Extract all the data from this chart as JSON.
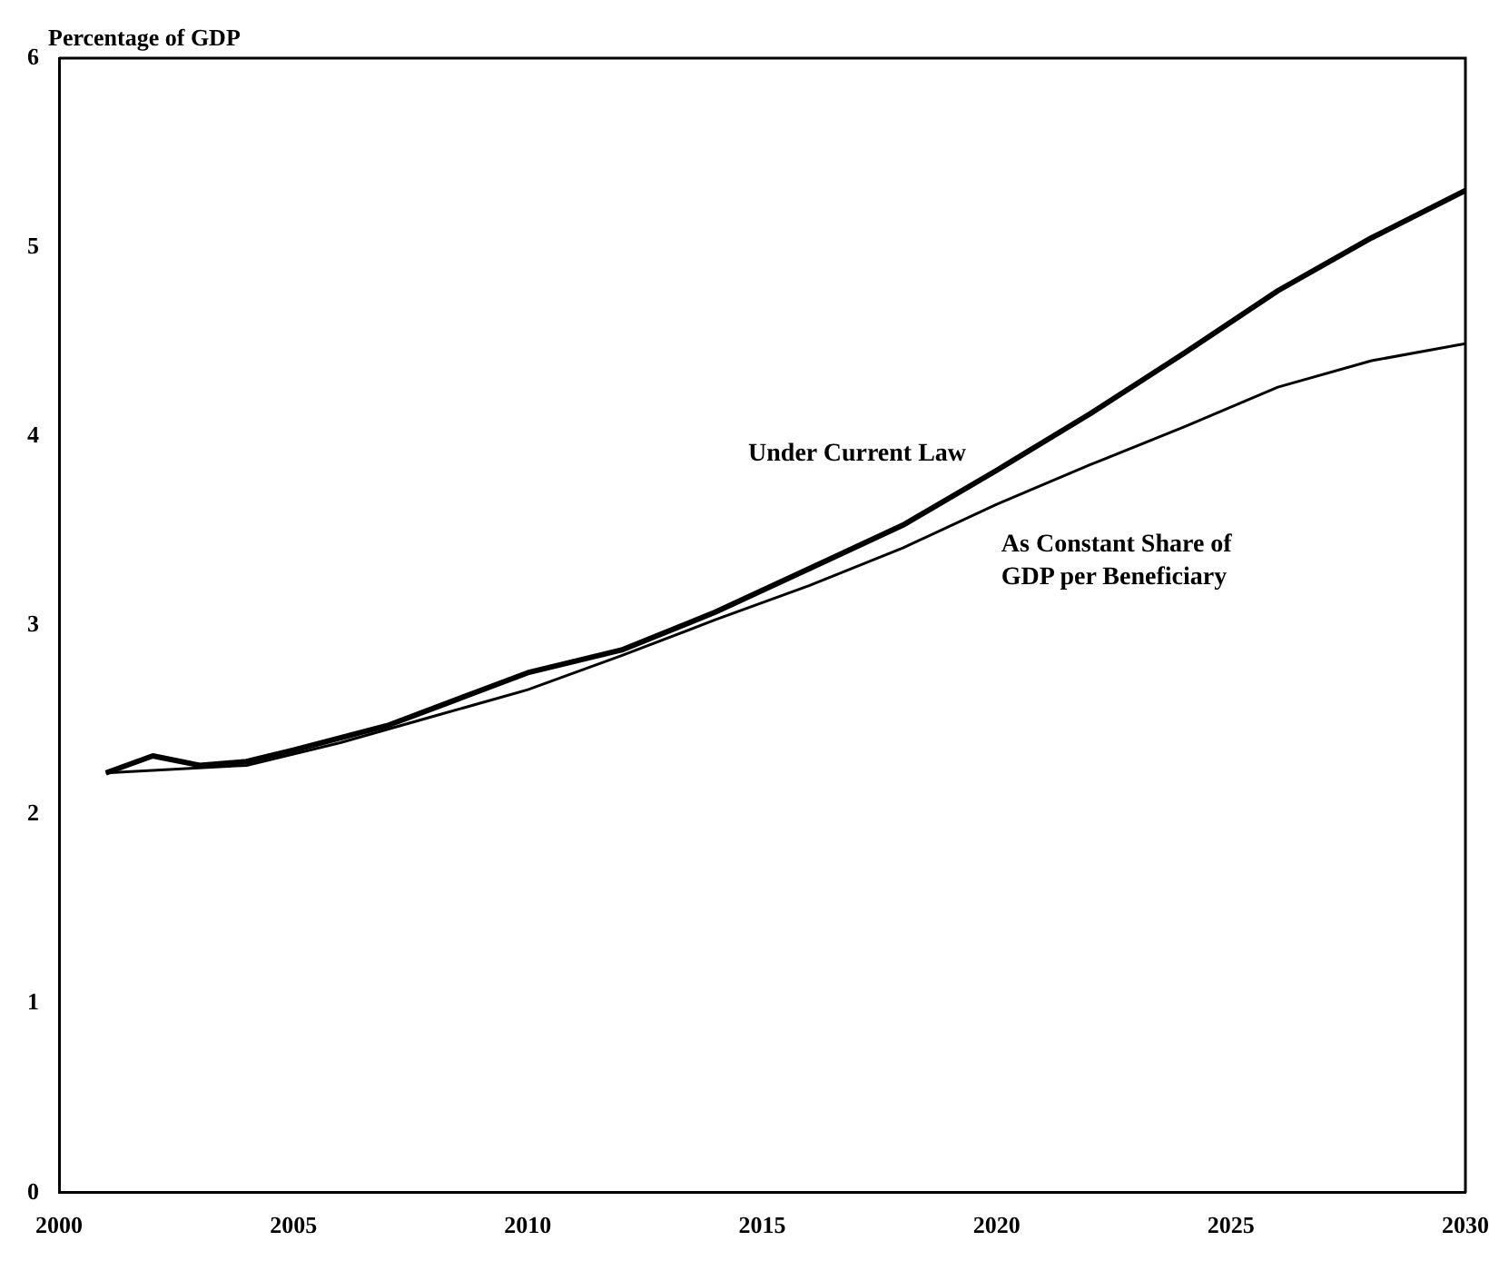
{
  "chart_data": {
    "type": "line",
    "ylabel": "Percentage of GDP",
    "xlim": [
      2000,
      2030
    ],
    "xticks": [
      2000,
      2005,
      2010,
      2015,
      2020,
      2025,
      2030
    ],
    "ylim": [
      0,
      6
    ],
    "yticks": [
      0,
      1,
      2,
      3,
      4,
      5,
      6
    ],
    "grid": false,
    "legend": false,
    "marker": "none",
    "series": [
      {
        "name": "Under Current Law",
        "color": "#000000",
        "x": [
          2001,
          2002,
          2003,
          2004,
          2005,
          2007,
          2008.5,
          2010,
          2012,
          2014,
          2016,
          2018,
          2020,
          2022,
          2024,
          2026,
          2028,
          2030
        ],
        "values": [
          2.22,
          2.31,
          2.26,
          2.28,
          2.34,
          2.47,
          2.61,
          2.75,
          2.87,
          3.07,
          3.3,
          3.53,
          3.82,
          4.12,
          4.44,
          4.77,
          5.05,
          5.3
        ]
      },
      {
        "name": "As Constant Share of GDP per Beneficiary",
        "color": "#000000",
        "x": [
          2001,
          2004,
          2006,
          2008,
          2010,
          2012,
          2014,
          2016,
          2018,
          2020,
          2022,
          2024,
          2026,
          2028,
          2030
        ],
        "values": [
          2.22,
          2.26,
          2.38,
          2.52,
          2.66,
          2.84,
          3.03,
          3.21,
          3.41,
          3.64,
          3.85,
          4.05,
          4.26,
          4.4,
          4.49
        ]
      }
    ]
  }
}
